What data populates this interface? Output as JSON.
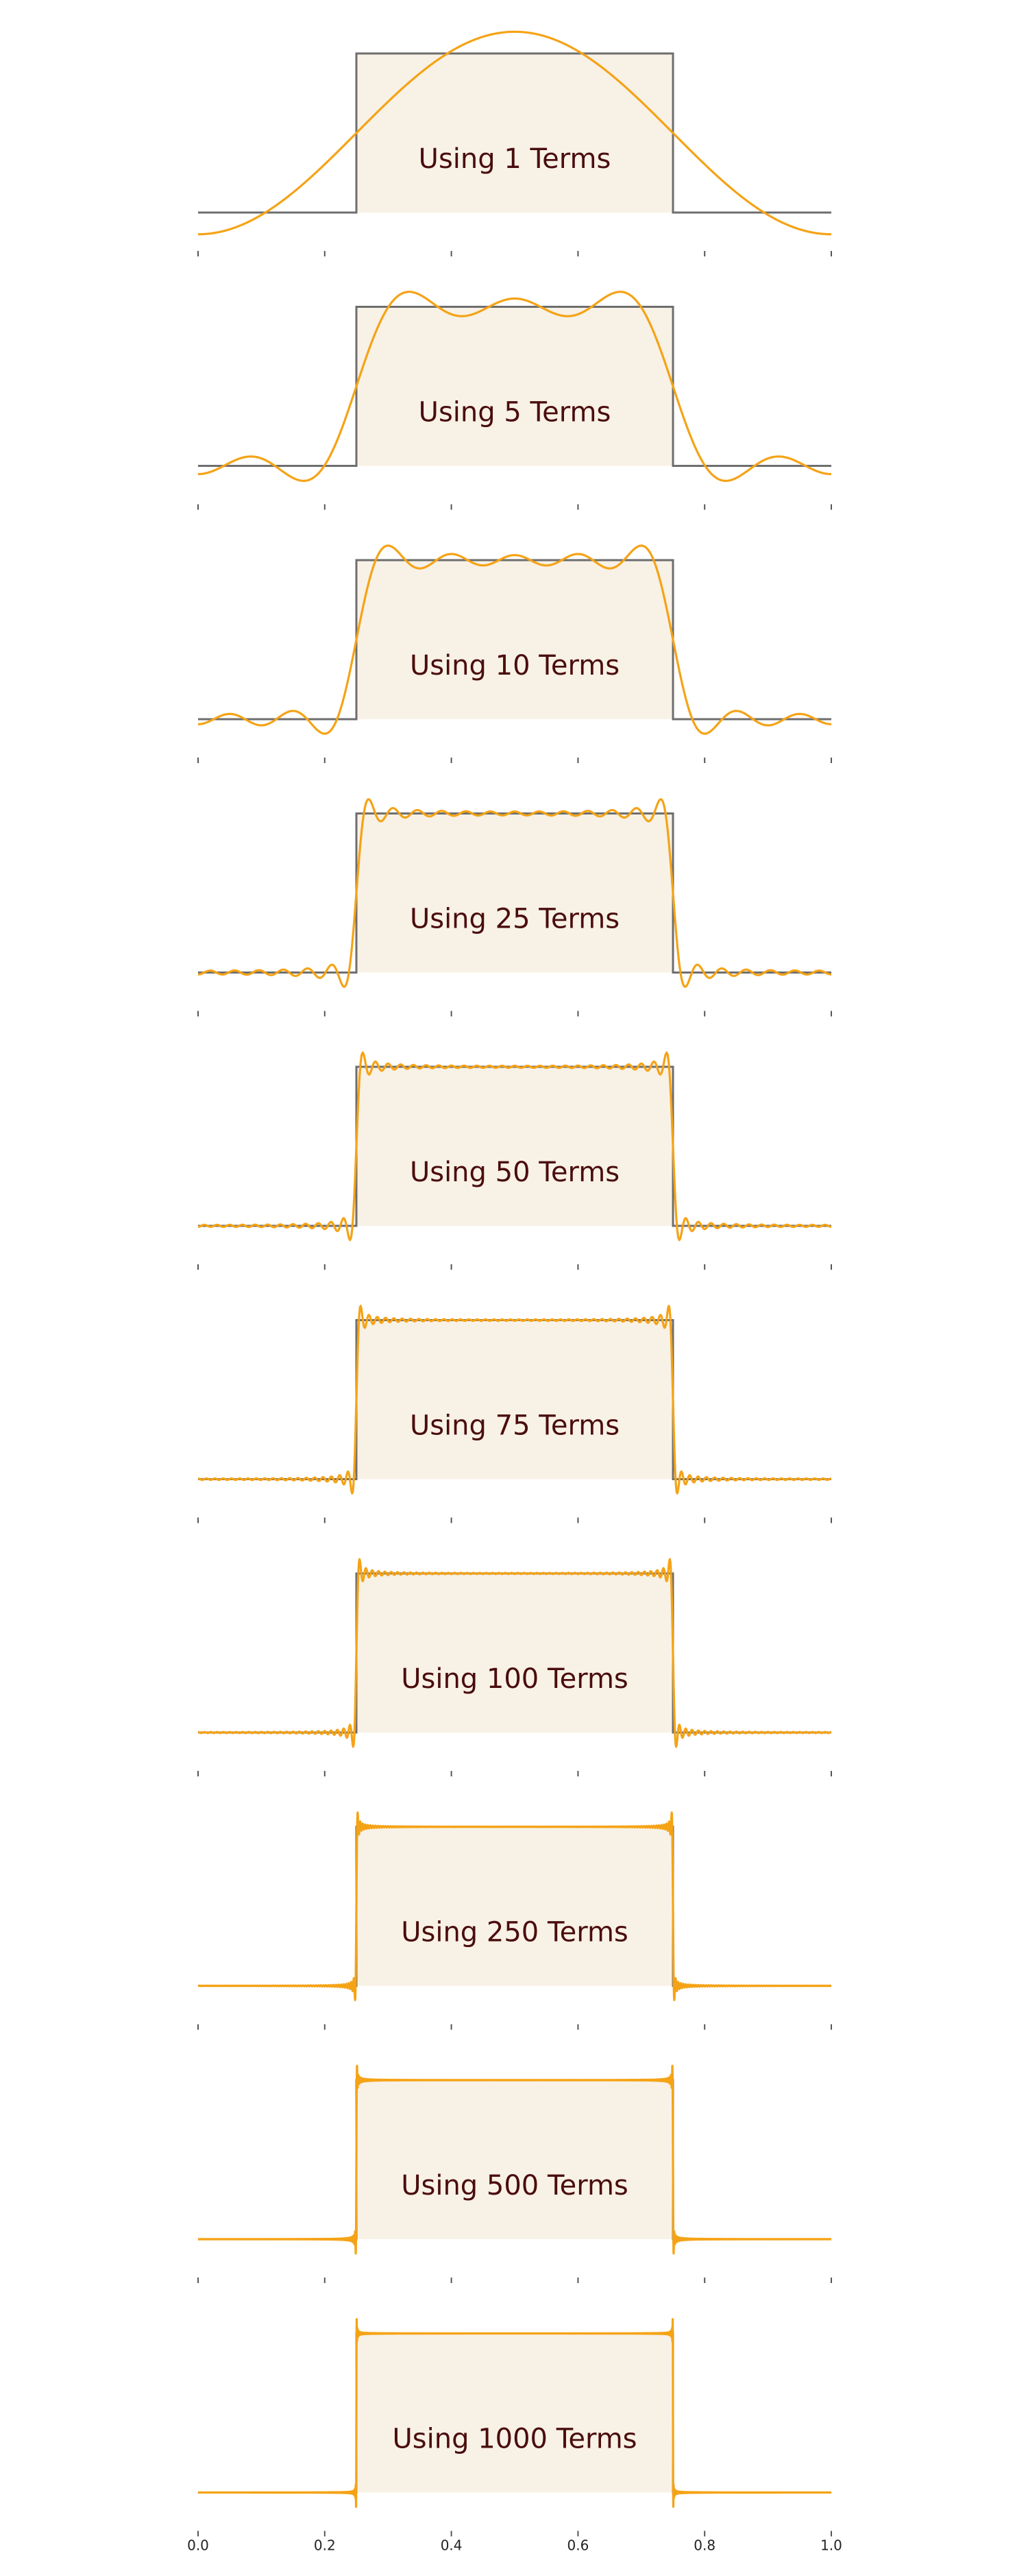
{
  "chart_data": {
    "type": "line",
    "description_label_template": "Using {n} Terms",
    "xlim": [
      0.0,
      1.0
    ],
    "x_ticks": [
      0.0,
      0.2,
      0.4,
      0.6,
      0.8,
      1.0
    ],
    "x_tick_labels": [
      "0.0",
      "0.2",
      "0.4",
      "0.6",
      "0.8",
      "1.0"
    ],
    "square_wave": {
      "low": 0,
      "high": 1,
      "rise_at": 0.25,
      "fall_at": 0.75
    },
    "panels": [
      {
        "terms": 1,
        "label": "Using 1 Terms"
      },
      {
        "terms": 5,
        "label": "Using 5 Terms"
      },
      {
        "terms": 10,
        "label": "Using 10 Terms"
      },
      {
        "terms": 25,
        "label": "Using 25 Terms"
      },
      {
        "terms": 50,
        "label": "Using 50 Terms"
      },
      {
        "terms": 75,
        "label": "Using 75 Terms"
      },
      {
        "terms": 100,
        "label": "Using 100 Terms"
      },
      {
        "terms": 250,
        "label": "Using 250 Terms"
      },
      {
        "terms": 500,
        "label": "Using 500 Terms"
      },
      {
        "terms": 1000,
        "label": "Using 1000 Terms"
      }
    ],
    "colors": {
      "fourier": "#f5a316",
      "square": "#6e6e6e",
      "fill": "#f8f1e6",
      "label": "#4a0d0d"
    },
    "grid": false,
    "legend": "none"
  }
}
